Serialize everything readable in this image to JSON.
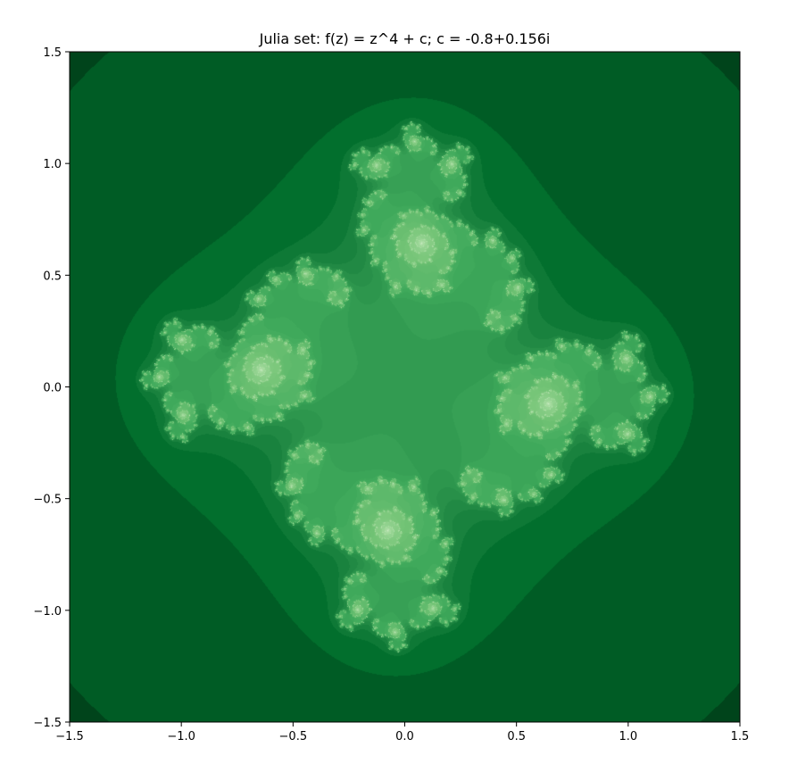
{
  "chart_data": {
    "type": "heatmap",
    "title": "Julia set: f(z) = z^4 + c; c = -0.8+0.156i",
    "xlabel": "",
    "ylabel": "",
    "xlim": [
      -1.5,
      1.5
    ],
    "ylim": [
      -1.5,
      1.5
    ],
    "x_ticks": [
      -1.5,
      -1.0,
      -0.5,
      0.0,
      0.5,
      1.0,
      1.5
    ],
    "y_ticks": [
      -1.5,
      -1.0,
      -0.5,
      0.0,
      0.5,
      1.0,
      1.5
    ],
    "x_tick_labels": [
      "−1.5",
      "−1.0",
      "−0.5",
      "0.0",
      "0.5",
      "1.0",
      "1.5"
    ],
    "y_tick_labels": [
      "−1.5",
      "−1.0",
      "−0.5",
      "0.0",
      "0.5",
      "1.0",
      "1.5"
    ],
    "function_power": 4,
    "c_real": -0.8,
    "c_imag": 0.156,
    "max_iterations": 256,
    "colormap": "Greens",
    "colormap_stops": [
      "#00441b",
      "#006d2c",
      "#238b45",
      "#41ab5d",
      "#74c476",
      "#a1d99b",
      "#c7e9c0",
      "#e5f5e0",
      "#f7fcf5"
    ],
    "grid": false
  }
}
